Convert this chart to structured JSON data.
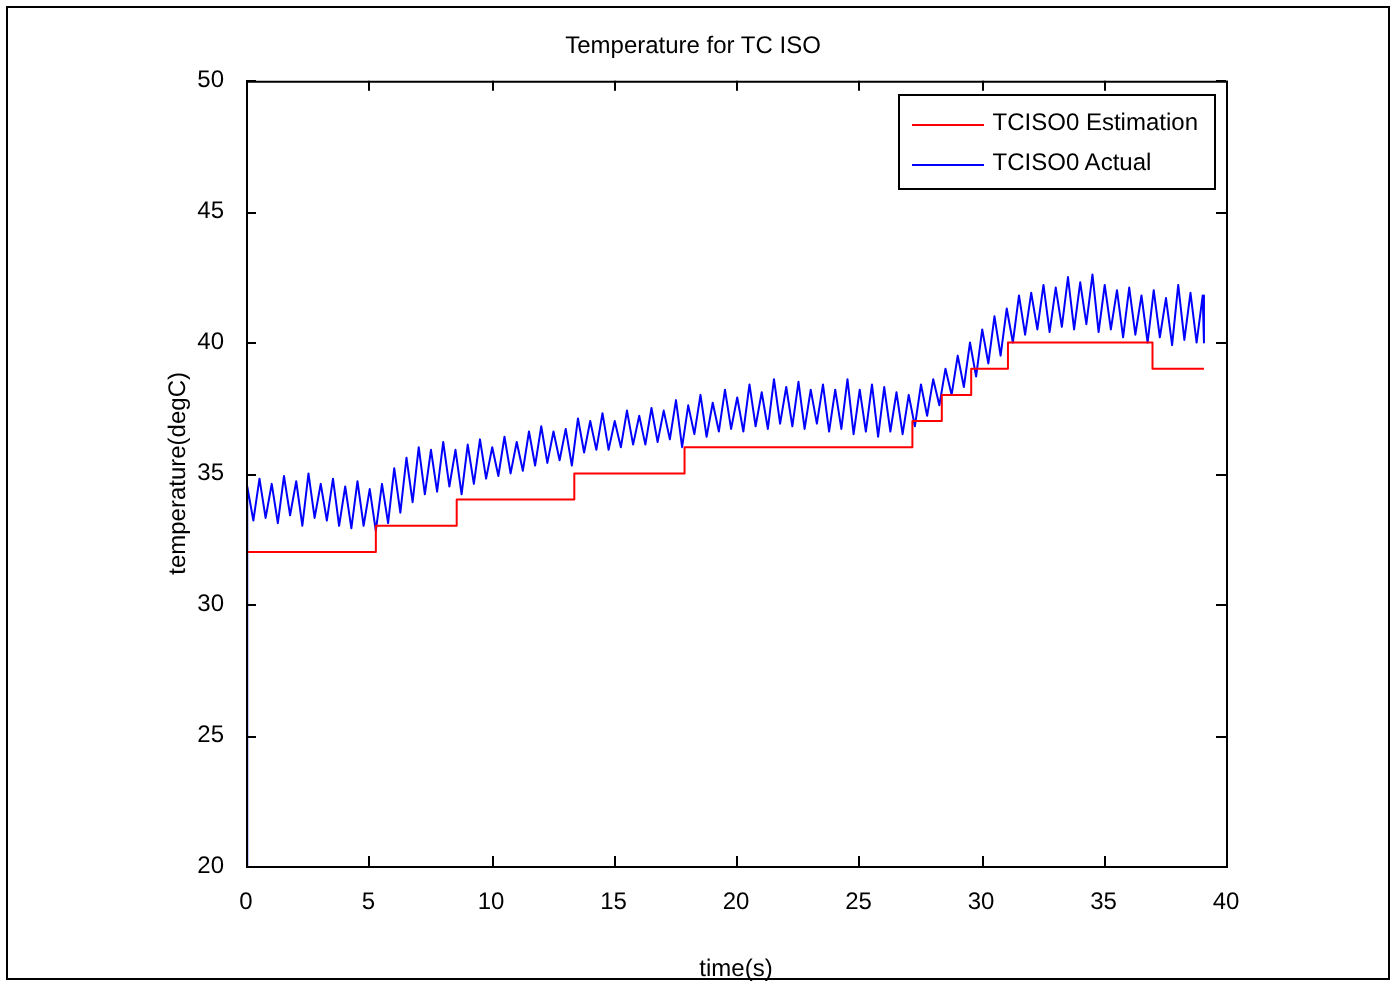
{
  "chart_data": {
    "type": "line",
    "title": "Temperature for TC ISO",
    "xlabel": "time(s)",
    "ylabel": "temperature(degC)",
    "xlim": [
      0,
      40
    ],
    "xticks": [
      0,
      5,
      10,
      15,
      20,
      25,
      30,
      35,
      40
    ],
    "ylim": [
      20,
      50
    ],
    "yticks": [
      20,
      25,
      30,
      35,
      40,
      45,
      50
    ],
    "grid": false,
    "legend": "top right",
    "series": [
      {
        "name": "TCISO0 Estimation",
        "type": "step",
        "color": "#ff0000",
        "x": [
          0,
          0,
          5.3,
          8.6,
          13.4,
          17.9,
          27.2,
          28.4,
          29.6,
          31.1,
          37,
          39.1
        ],
        "values": [
          20,
          32,
          33,
          34,
          35,
          36,
          37,
          38,
          39,
          40,
          39,
          39
        ]
      },
      {
        "name": "TCISO0 Actual",
        "type": "line",
        "color": "#0000ff",
        "x": [
          0,
          0.05,
          0.3,
          0.55,
          0.8,
          1.05,
          1.3,
          1.55,
          1.8,
          2.05,
          2.3,
          2.55,
          2.8,
          3.05,
          3.3,
          3.55,
          3.8,
          4.05,
          4.3,
          4.55,
          4.8,
          5.05,
          5.3,
          5.55,
          5.8,
          6.05,
          6.3,
          6.55,
          6.8,
          7.05,
          7.3,
          7.55,
          7.8,
          8.05,
          8.3,
          8.55,
          8.8,
          9.05,
          9.3,
          9.55,
          9.8,
          10.05,
          10.3,
          10.55,
          10.8,
          11.05,
          11.3,
          11.55,
          11.8,
          12.05,
          12.3,
          12.55,
          12.8,
          13.05,
          13.3,
          13.55,
          13.8,
          14.05,
          14.3,
          14.55,
          14.8,
          15.05,
          15.3,
          15.55,
          15.8,
          16.05,
          16.3,
          16.55,
          16.8,
          17.05,
          17.3,
          17.55,
          17.8,
          18.05,
          18.3,
          18.55,
          18.8,
          19.05,
          19.3,
          19.55,
          19.8,
          20.05,
          20.3,
          20.55,
          20.8,
          21.05,
          21.3,
          21.55,
          21.8,
          22.05,
          22.3,
          22.55,
          22.8,
          23.05,
          23.3,
          23.55,
          23.8,
          24.05,
          24.3,
          24.55,
          24.8,
          25.05,
          25.3,
          25.55,
          25.8,
          26.05,
          26.3,
          26.55,
          26.8,
          27.05,
          27.3,
          27.55,
          27.8,
          28.05,
          28.3,
          28.55,
          28.8,
          29.05,
          29.3,
          29.55,
          29.8,
          30.05,
          30.3,
          30.55,
          30.8,
          31.05,
          31.3,
          31.55,
          31.8,
          32.05,
          32.3,
          32.55,
          32.8,
          33.05,
          33.3,
          33.55,
          33.8,
          34.05,
          34.3,
          34.55,
          34.8,
          35.05,
          35.3,
          35.55,
          35.8,
          36.05,
          36.3,
          36.55,
          36.8,
          37.05,
          37.3,
          37.55,
          37.8,
          38.05,
          38.3,
          38.55,
          38.8,
          39.05,
          39.1
        ],
        "values": [
          20,
          34.5,
          33.2,
          34.8,
          33.3,
          34.6,
          33.1,
          34.9,
          33.4,
          34.7,
          33.0,
          35.0,
          33.3,
          34.6,
          33.2,
          34.8,
          33.0,
          34.5,
          32.9,
          34.7,
          33.0,
          34.4,
          32.8,
          34.6,
          33.1,
          35.2,
          33.5,
          35.6,
          33.9,
          36.0,
          34.2,
          35.9,
          34.3,
          36.2,
          34.5,
          35.9,
          34.2,
          36.1,
          34.6,
          36.3,
          34.8,
          36.0,
          34.9,
          36.4,
          35.0,
          36.2,
          35.1,
          36.6,
          35.3,
          36.8,
          35.4,
          36.6,
          35.5,
          36.7,
          35.3,
          37.1,
          35.8,
          37.0,
          35.9,
          37.3,
          35.9,
          37.0,
          36.0,
          37.4,
          36.1,
          37.2,
          36.1,
          37.5,
          36.2,
          37.4,
          36.3,
          37.8,
          36.0,
          37.6,
          36.5,
          38.0,
          36.4,
          37.7,
          36.6,
          38.2,
          36.7,
          37.9,
          36.6,
          38.4,
          36.8,
          38.1,
          36.7,
          38.6,
          36.9,
          38.3,
          36.8,
          38.5,
          36.7,
          38.2,
          36.9,
          38.4,
          36.6,
          38.2,
          36.7,
          38.6,
          36.5,
          38.2,
          36.6,
          38.4,
          36.4,
          38.3,
          36.6,
          38.1,
          36.5,
          38.0,
          36.8,
          38.4,
          37.2,
          38.6,
          37.6,
          39.0,
          38.0,
          39.5,
          38.3,
          40.0,
          38.7,
          40.5,
          39.2,
          41.0,
          39.5,
          41.3,
          40.0,
          41.8,
          40.3,
          41.9,
          40.5,
          42.2,
          40.4,
          42.1,
          40.6,
          42.5,
          40.5,
          42.3,
          40.7,
          42.6,
          40.4,
          42.2,
          40.5,
          42.0,
          40.2,
          42.1,
          40.3,
          41.8,
          40.0,
          42.0,
          40.2,
          41.7,
          39.9,
          42.2,
          40.1,
          41.9,
          40.0,
          41.8,
          40.0
        ]
      }
    ]
  }
}
